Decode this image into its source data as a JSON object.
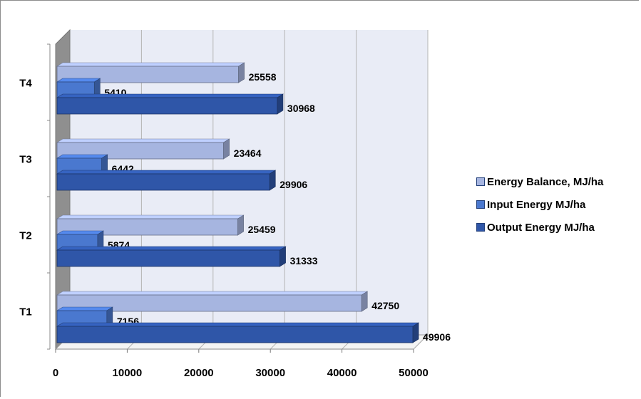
{
  "chart_data": {
    "type": "bar",
    "orientation": "horizontal",
    "style": "3d-clustered",
    "categories": [
      "T1",
      "T2",
      "T3",
      "T4"
    ],
    "series": [
      {
        "name": "Energy Balance, MJ/ha",
        "values": [
          42750,
          25459,
          23464,
          25558
        ],
        "color": "#a6b5e0"
      },
      {
        "name": "Input Energy MJ/ha",
        "values": [
          7156,
          5874,
          6442,
          5410
        ],
        "color": "#4a78cf"
      },
      {
        "name": "Output Energy MJ/ha",
        "values": [
          49906,
          31333,
          29906,
          30968
        ],
        "color": "#2f56a8"
      }
    ],
    "data_labels": true,
    "xlim": [
      0,
      50000
    ],
    "xticks": [
      0,
      10000,
      20000,
      30000,
      40000,
      50000
    ],
    "xlabel": "",
    "ylabel": "",
    "title": "",
    "grid": true,
    "legend_position": "right"
  }
}
